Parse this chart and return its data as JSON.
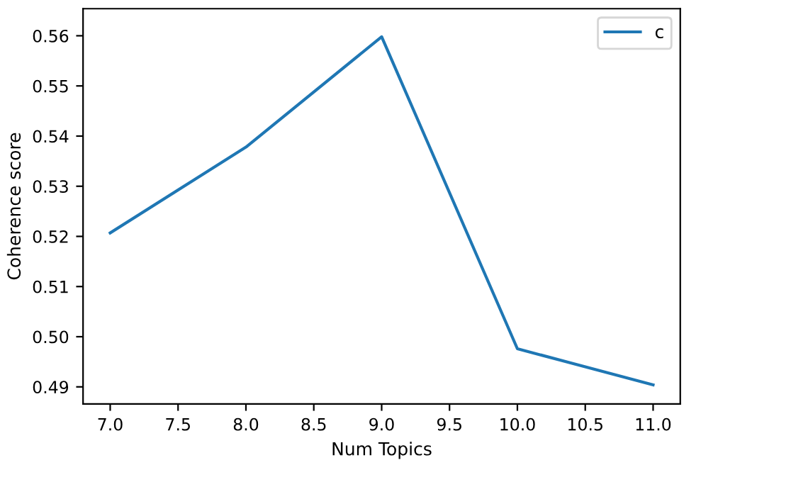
{
  "chart_data": {
    "type": "line",
    "xlabel": "Num Topics",
    "ylabel": "Coherence score",
    "x": [
      7,
      8,
      9,
      10,
      11
    ],
    "series": [
      {
        "name": "c",
        "color": "#1f77b4",
        "values": [
          0.5207,
          0.5378,
          0.5598,
          0.4976,
          0.4904
        ]
      }
    ],
    "xlim": [
      6.8,
      11.2
    ],
    "ylim": [
      0.4866,
      0.5654
    ],
    "xticks": [
      {
        "value": 7,
        "label": "7.0"
      },
      {
        "value": 7.5,
        "label": "7.5"
      },
      {
        "value": 8,
        "label": "8.0"
      },
      {
        "value": 8.5,
        "label": "8.5"
      },
      {
        "value": 9,
        "label": "9.0"
      },
      {
        "value": 9.5,
        "label": "9.5"
      },
      {
        "value": 10,
        "label": "10.0"
      },
      {
        "value": 10.5,
        "label": "10.5"
      },
      {
        "value": 11,
        "label": "11.0"
      }
    ],
    "yticks": [
      {
        "value": 0.49,
        "label": "0.49"
      },
      {
        "value": 0.5,
        "label": "0.50"
      },
      {
        "value": 0.51,
        "label": "0.51"
      },
      {
        "value": 0.52,
        "label": "0.52"
      },
      {
        "value": 0.53,
        "label": "0.53"
      },
      {
        "value": 0.54,
        "label": "0.54"
      },
      {
        "value": 0.55,
        "label": "0.55"
      },
      {
        "value": 0.56,
        "label": "0.56"
      }
    ],
    "legend": "top right",
    "grid": false,
    "marker": "none",
    "line_style": "solid"
  }
}
